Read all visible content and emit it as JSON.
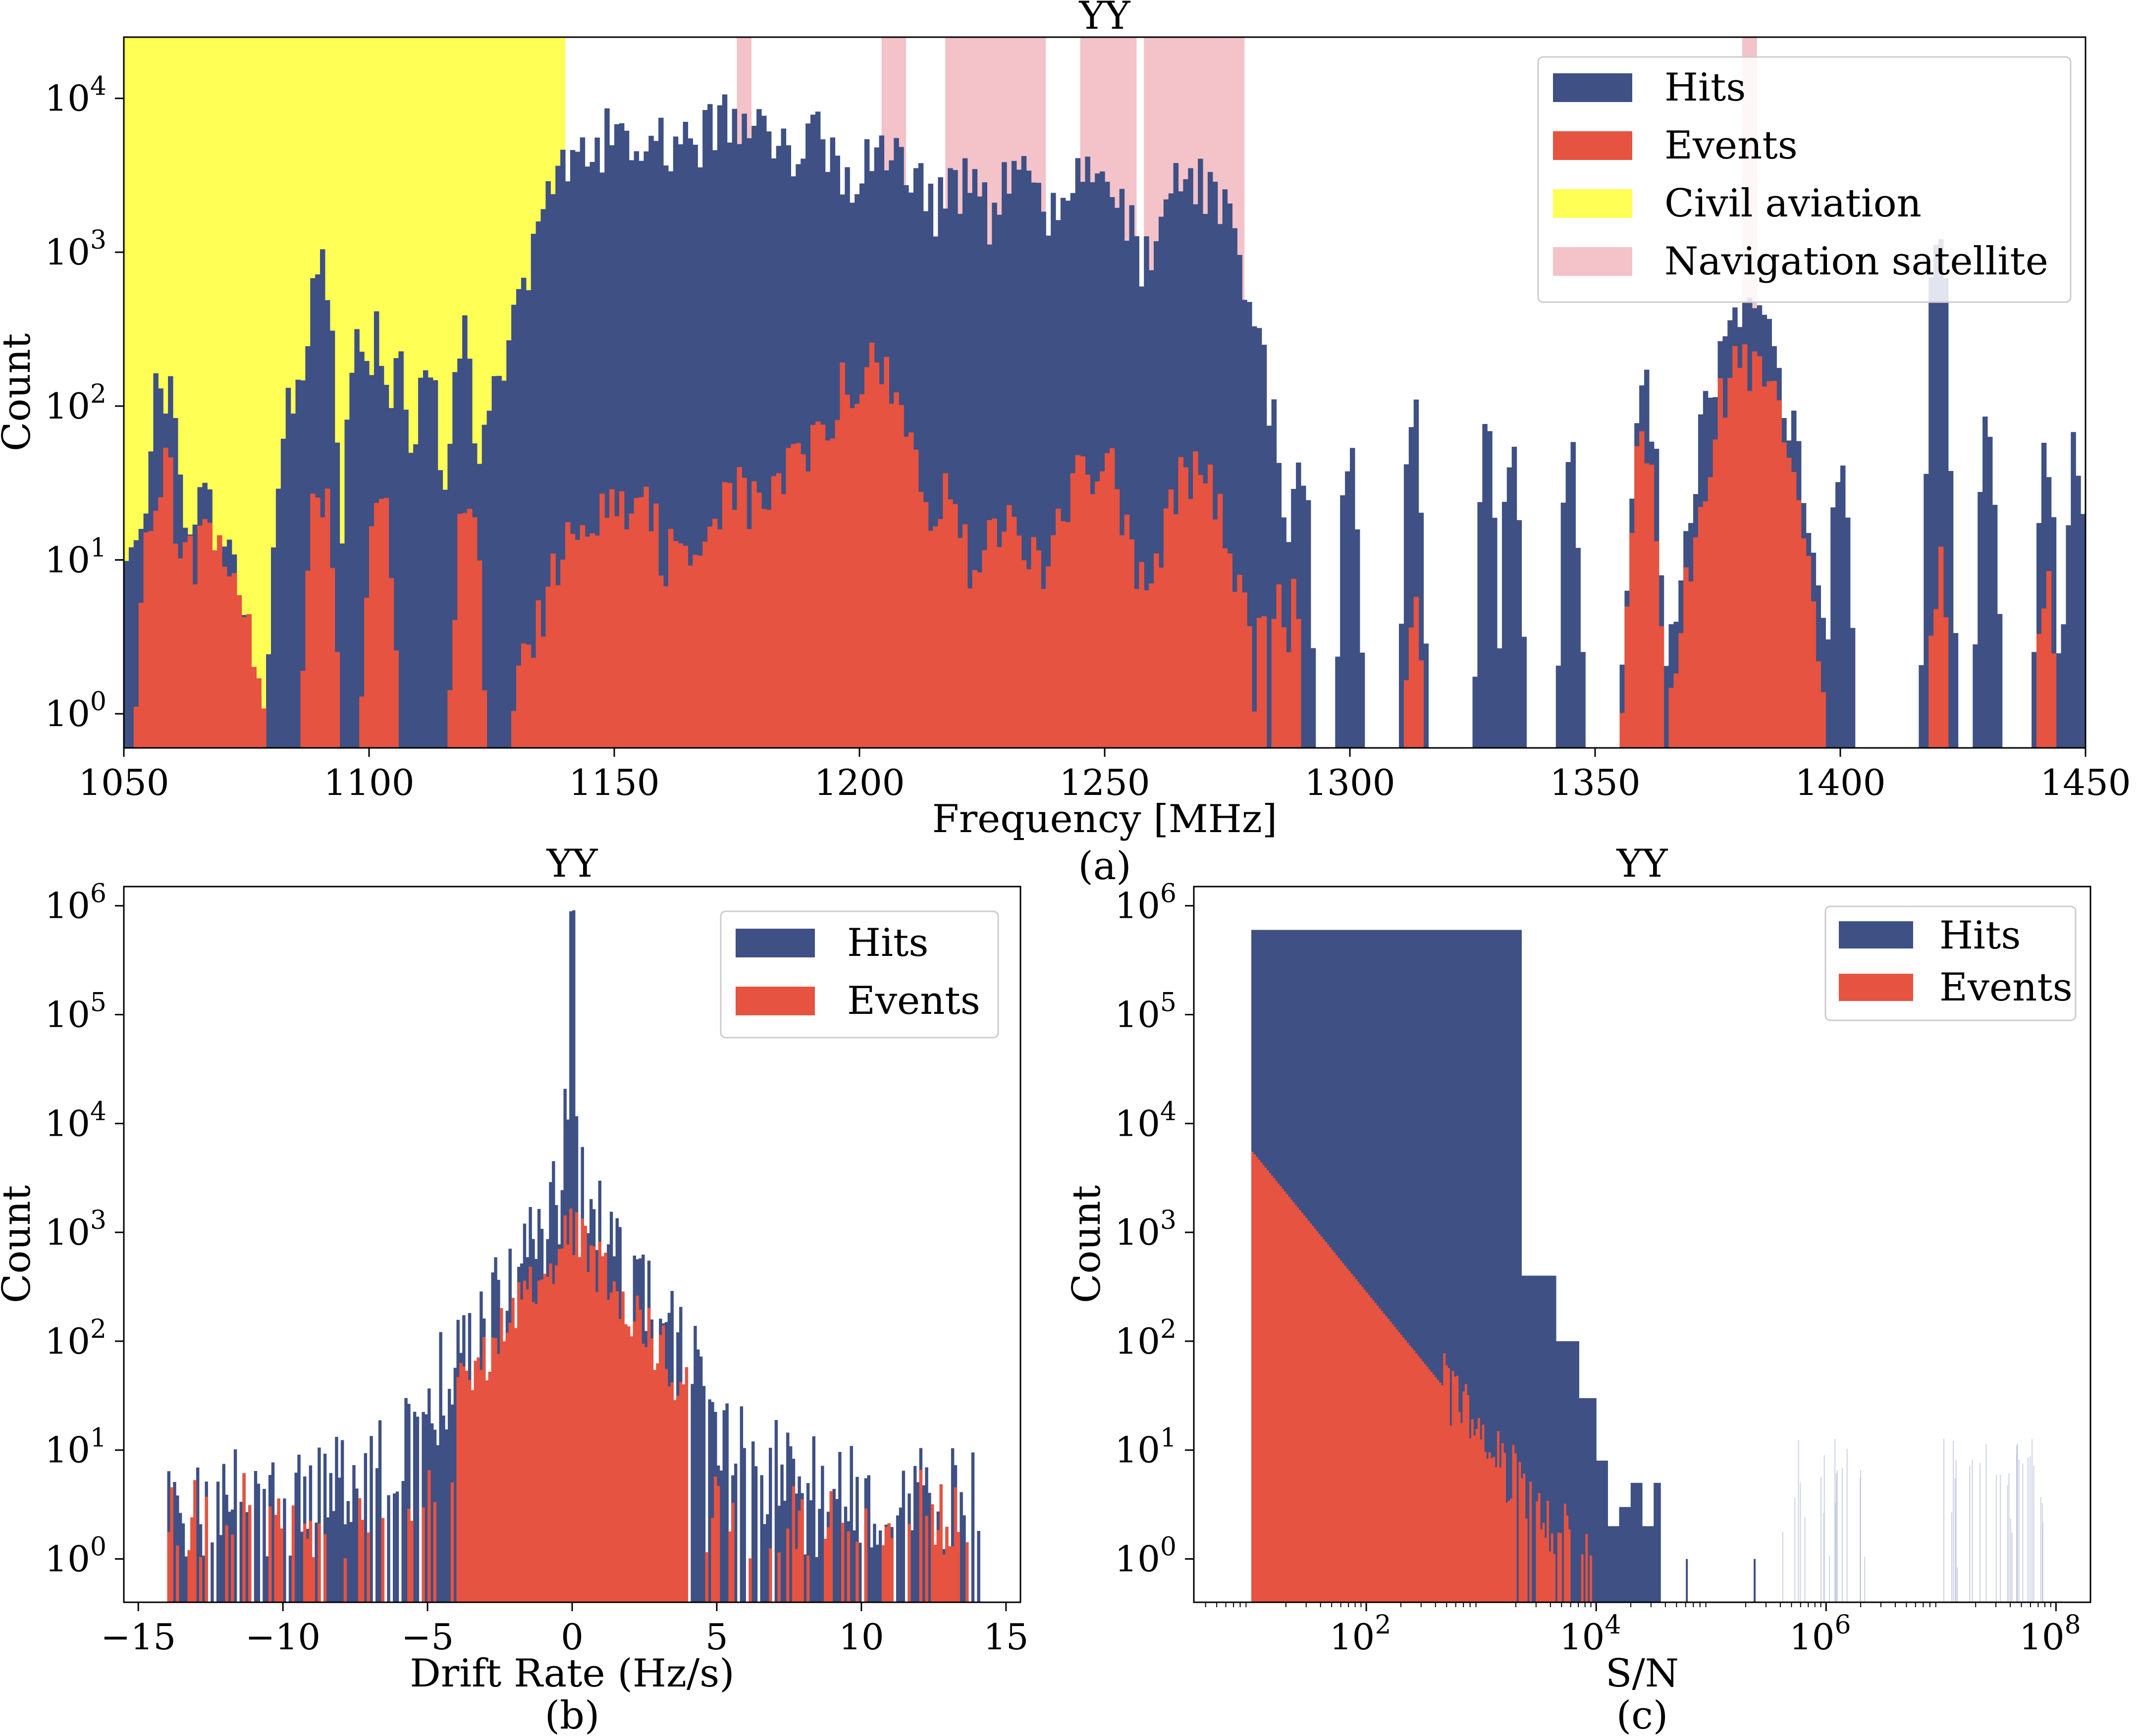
{
  "colors": {
    "hits": "#3e5084",
    "events": "#e65341",
    "civil": "#ffff55",
    "nav": "#f4c2c9"
  },
  "chart_data": [
    {
      "type": "bar",
      "panel": "a",
      "caption": "(a)",
      "title": "YY",
      "xlabel": "Frequency [MHz]",
      "ylabel": "Count",
      "xlim": [
        1050,
        1450
      ],
      "ylim": [
        0.6,
        25000
      ],
      "yscale": "log",
      "x_ticks": [
        1050,
        1100,
        1150,
        1200,
        1250,
        1300,
        1350,
        1400,
        1450
      ],
      "y_ticks": [
        {
          "v": 1,
          "exp": "0"
        },
        {
          "v": 10,
          "exp": "1"
        },
        {
          "v": 100,
          "exp": "2"
        },
        {
          "v": 1000,
          "exp": "3"
        },
        {
          "v": 10000,
          "exp": "4"
        }
      ],
      "legend": {
        "hits": "Hits",
        "events": "Events",
        "civil": "Civil aviation",
        "nav": "Navigation satellite"
      },
      "civil_aviation": [
        [
          1050,
          1140
        ]
      ],
      "navigation_satellite": [
        [
          1175,
          1178
        ],
        [
          1204.5,
          1209.5
        ],
        [
          1217.5,
          1238
        ],
        [
          1245,
          1256.5
        ],
        [
          1258,
          1278.5
        ],
        [
          1380,
          1383
        ]
      ],
      "hits_peaks": [
        {
          "c": 1052,
          "w": 2,
          "a": 12
        },
        {
          "c": 1058,
          "w": 2,
          "a": 150
        },
        {
          "c": 1065,
          "w": 5,
          "a": 25
        },
        {
          "c": 1085,
          "w": 2,
          "a": 140
        },
        {
          "c": 1090,
          "w": 1.5,
          "a": 1000
        },
        {
          "c": 1098,
          "w": 1.5,
          "a": 250
        },
        {
          "c": 1102,
          "w": 1.5,
          "a": 350
        },
        {
          "c": 1106,
          "w": 1.5,
          "a": 200
        },
        {
          "c": 1112,
          "w": 1.5,
          "a": 180
        },
        {
          "c": 1119,
          "w": 1.5,
          "a": 320
        },
        {
          "c": 1127,
          "w": 1.5,
          "a": 200
        },
        {
          "c": 1131,
          "w": 2,
          "a": 50
        },
        {
          "c": 1136,
          "w": 1.5,
          "a": 100
        },
        {
          "c": 1148,
          "w": 8,
          "a": 6000
        },
        {
          "c": 1162,
          "w": 7,
          "a": 6000
        },
        {
          "c": 1175,
          "w": 7,
          "a": 9000
        },
        {
          "c": 1190,
          "w": 7,
          "a": 6000
        },
        {
          "c": 1205,
          "w": 7,
          "a": 5000
        },
        {
          "c": 1220,
          "w": 6,
          "a": 3000
        },
        {
          "c": 1233,
          "w": 6,
          "a": 3500
        },
        {
          "c": 1248,
          "w": 6,
          "a": 3500
        },
        {
          "c": 1268,
          "w": 6,
          "a": 3500
        },
        {
          "c": 1290,
          "w": 1,
          "a": 60
        },
        {
          "c": 1300,
          "w": 1,
          "a": 60
        },
        {
          "c": 1313,
          "w": 1,
          "a": 100
        },
        {
          "c": 1328,
          "w": 1,
          "a": 60
        },
        {
          "c": 1333,
          "w": 1,
          "a": 60
        },
        {
          "c": 1345,
          "w": 1,
          "a": 60
        },
        {
          "c": 1360,
          "w": 1.5,
          "a": 150
        },
        {
          "c": 1381,
          "w": 5,
          "a": 400
        },
        {
          "c": 1400,
          "w": 1,
          "a": 60
        },
        {
          "c": 1420,
          "w": 1,
          "a": 1500
        },
        {
          "c": 1430,
          "w": 1,
          "a": 70
        },
        {
          "c": 1442,
          "w": 1,
          "a": 70
        },
        {
          "c": 1448,
          "w": 1,
          "a": 60
        }
      ],
      "events_peaks": [
        {
          "c": 1058,
          "w": 2,
          "a": 50
        },
        {
          "c": 1067,
          "w": 5,
          "a": 15
        },
        {
          "c": 1090,
          "w": 1.5,
          "a": 40
        },
        {
          "c": 1102,
          "w": 1.5,
          "a": 30
        },
        {
          "c": 1120,
          "w": 1.5,
          "a": 30
        },
        {
          "c": 1150,
          "w": 8,
          "a": 30
        },
        {
          "c": 1165,
          "w": 6,
          "a": 15
        },
        {
          "c": 1175,
          "w": 5,
          "a": 30
        },
        {
          "c": 1190,
          "w": 6,
          "a": 60
        },
        {
          "c": 1201,
          "w": 6,
          "a": 200
        },
        {
          "c": 1215,
          "w": 5,
          "a": 30
        },
        {
          "c": 1230,
          "w": 5,
          "a": 20
        },
        {
          "c": 1248,
          "w": 5,
          "a": 50
        },
        {
          "c": 1268,
          "w": 5,
          "a": 40
        },
        {
          "c": 1313,
          "w": 1,
          "a": 5
        },
        {
          "c": 1360,
          "w": 1.5,
          "a": 70
        },
        {
          "c": 1381,
          "w": 5,
          "a": 200
        },
        {
          "c": 1420,
          "w": 1,
          "a": 10
        },
        {
          "c": 1442,
          "w": 1,
          "a": 8
        }
      ],
      "floor": {
        "hits_start": 1140,
        "hits_end": 1290,
        "hits_level": 8
      }
    },
    {
      "type": "bar",
      "panel": "b",
      "caption": "(b)",
      "title": "YY",
      "xlabel": "Drift Rate (Hz/s)",
      "ylabel": "Count",
      "xlim": [
        -15.5,
        15.5
      ],
      "ylim": [
        0.4,
        1500000
      ],
      "yscale": "log",
      "x_ticks": [
        -15,
        -10,
        -5,
        0,
        5,
        10,
        15
      ],
      "y_ticks": [
        {
          "v": 1,
          "exp": "0"
        },
        {
          "v": 10,
          "exp": "1"
        },
        {
          "v": 100,
          "exp": "2"
        },
        {
          "v": 1000,
          "exp": "3"
        },
        {
          "v": 10000,
          "exp": "4"
        },
        {
          "v": 100000,
          "exp": "5"
        },
        {
          "v": 1000000,
          "exp": "6"
        }
      ],
      "legend": {
        "hits": "Hits",
        "events": "Events"
      },
      "hits_peak": 550000,
      "hits_core": 3000,
      "hits_scale": 2.2,
      "hits_floor": 3,
      "events_peak": 1000,
      "events_scale": 1.6,
      "events_floor": 2,
      "range": [
        -14,
        14
      ]
    },
    {
      "type": "bar",
      "panel": "c",
      "caption": "(c)",
      "title": "YY",
      "xlabel": "S/N",
      "ylabel": "Count",
      "xlim": [
        0.5,
        8.3
      ],
      "ylim": [
        0.4,
        1500000
      ],
      "yscale": "log",
      "xscale": "log",
      "x_ticks": [
        {
          "v": 2,
          "exp": "2"
        },
        {
          "v": 4,
          "exp": "4"
        },
        {
          "v": 6,
          "exp": "6"
        },
        {
          "v": 8,
          "exp": "8"
        }
      ],
      "y_ticks": [
        {
          "v": 1,
          "exp": "0"
        },
        {
          "v": 10,
          "exp": "1"
        },
        {
          "v": 100,
          "exp": "2"
        },
        {
          "v": 1000,
          "exp": "3"
        },
        {
          "v": 10000,
          "exp": "4"
        },
        {
          "v": 100000,
          "exp": "5"
        },
        {
          "v": 1000000,
          "exp": "6"
        }
      ],
      "legend": {
        "hits": "Hits",
        "events": "Events"
      },
      "hits_steps": [
        {
          "x0": 1.0,
          "x1": 3.35,
          "y": 600000
        },
        {
          "x0": 3.35,
          "x1": 3.65,
          "y": 400
        },
        {
          "x0": 3.65,
          "x1": 3.85,
          "y": 100
        },
        {
          "x0": 3.85,
          "x1": 4.0,
          "y": 30
        },
        {
          "x0": 4.0,
          "x1": 4.1,
          "y": 8
        },
        {
          "x0": 4.1,
          "x1": 4.2,
          "y": 2
        },
        {
          "x0": 4.2,
          "x1": 4.3,
          "y": 3
        },
        {
          "x0": 4.3,
          "x1": 4.4,
          "y": 5
        },
        {
          "x0": 4.4,
          "x1": 4.5,
          "y": 2
        },
        {
          "x0": 4.5,
          "x1": 4.56,
          "y": 5
        }
      ],
      "events_log_start": 1.0,
      "events_start": 5500,
      "events_end_x": 4.0
    }
  ]
}
